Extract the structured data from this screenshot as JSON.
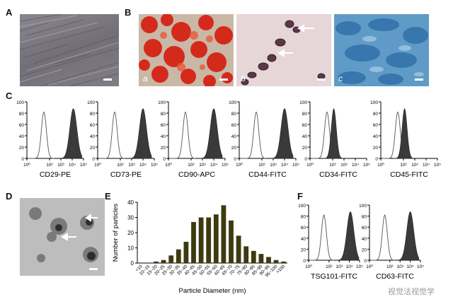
{
  "panels": {
    "A": "A",
    "B": "B",
    "C": "C",
    "D": "D",
    "E": "E",
    "F": "F"
  },
  "subpanels": {
    "a": "a",
    "b": "b",
    "c": "c"
  },
  "flow": {
    "y_ticks": [
      "0",
      "20",
      "40",
      "60",
      "80",
      "100"
    ],
    "x_ticks": [
      "10⁰",
      "10¹",
      "10²",
      "10³",
      "10⁴",
      "10⁵"
    ],
    "markers_c": [
      "CD29-PE",
      "CD73-PE",
      "CD90-APC",
      "CD44-FITC",
      "CD34-FITC",
      "CD45-FITC"
    ],
    "markers_f": [
      "TSG101-FITC",
      "CD63-FITC"
    ]
  },
  "chart_data": {
    "type": "bar",
    "ylabel": "Number of particles",
    "xlabel": "Particle Diameter (nm)",
    "categories": [
      "<10",
      "10~15",
      "15~20",
      "20~25",
      "25~30",
      "30~35",
      "35~40",
      "40~45",
      "45~50",
      "50~55",
      "55~60",
      "60~65",
      "65~70",
      "70~75",
      "75~80",
      "80~85",
      "85~90",
      "90~95",
      "95~100",
      ">100"
    ],
    "values": [
      0,
      0,
      1,
      2,
      5,
      9,
      14,
      27,
      30,
      30,
      32,
      38,
      28,
      18,
      11,
      8,
      6,
      4,
      2,
      1
    ],
    "ylim": [
      0,
      40
    ],
    "yticks": [
      0,
      10,
      20,
      30,
      40
    ],
    "bar_color": "#3d3a10"
  },
  "watermark": "视觉法视觉学"
}
